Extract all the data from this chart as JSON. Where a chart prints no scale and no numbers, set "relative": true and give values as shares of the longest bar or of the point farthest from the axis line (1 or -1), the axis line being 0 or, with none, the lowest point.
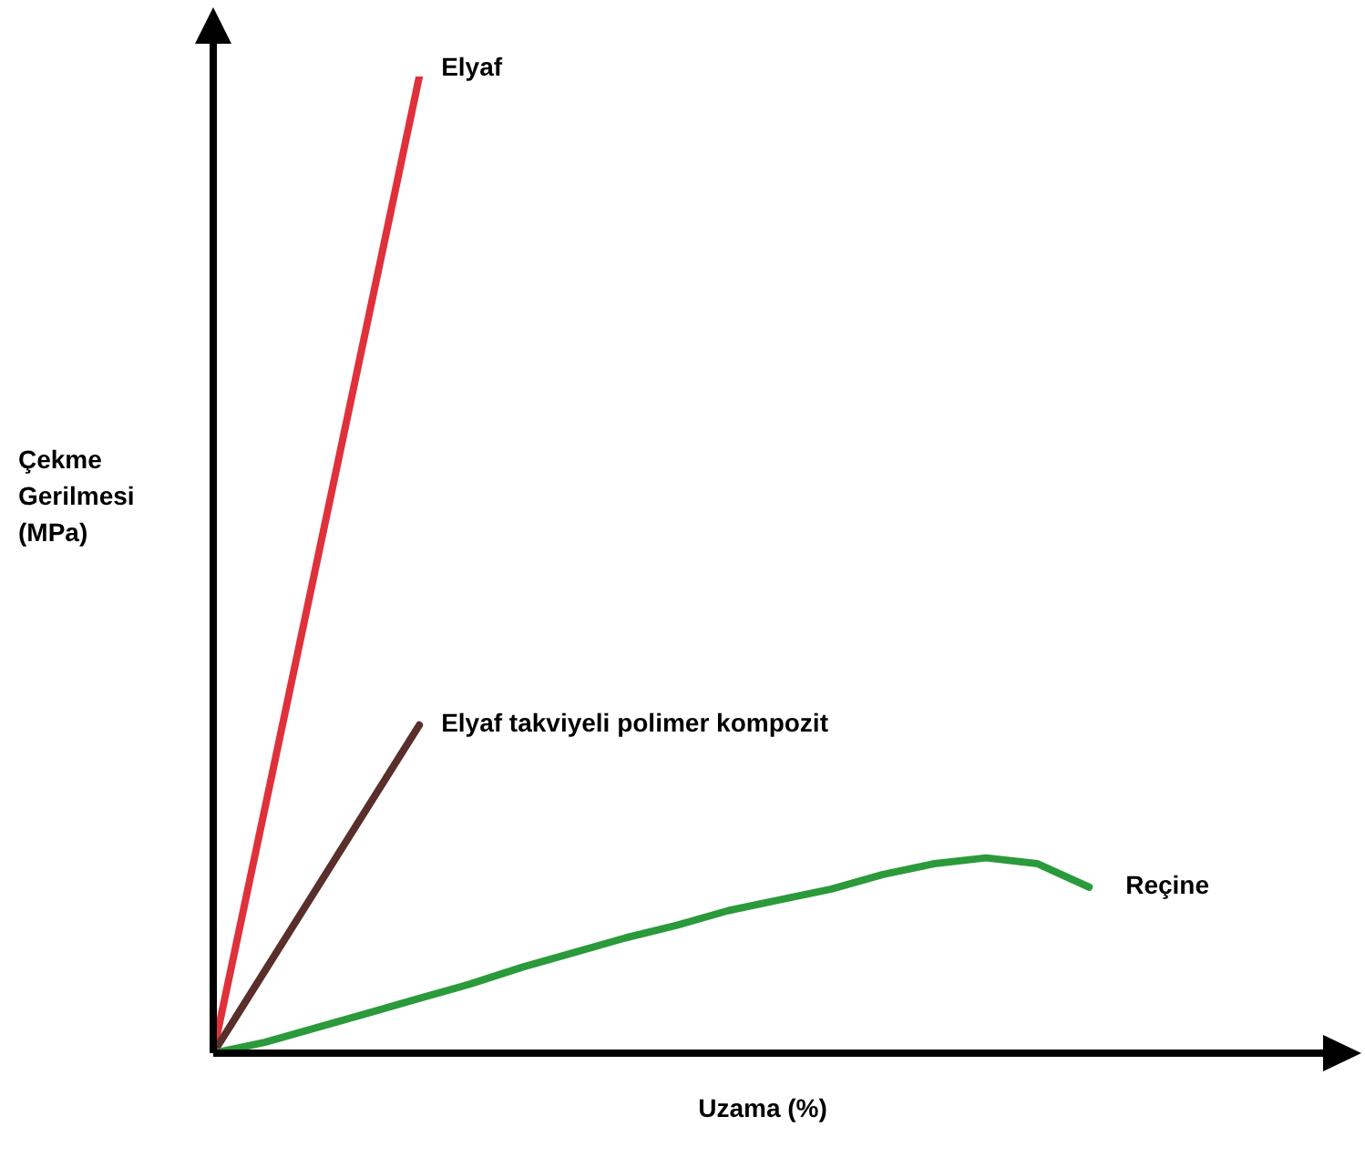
{
  "chart_data": {
    "type": "line",
    "relative": true,
    "xlabel": "Uzama (%)",
    "ylabel": "Çekme Gerilmesi (MPa)",
    "grid": false,
    "legend": false,
    "marker": "none",
    "line_style": "solid",
    "categories": [
      null,
      null,
      null,
      null,
      null,
      null,
      null,
      null,
      null,
      null,
      null,
      null,
      null,
      null,
      null,
      null,
      null,
      null,
      null,
      null,
      null,
      null
    ],
    "series": [
      {
        "name": "Elyaf",
        "color": "#e0303a",
        "values": [
          0,
          null,
          null,
          null,
          1,
          null,
          null,
          null,
          null,
          null,
          null,
          null,
          null,
          null,
          null,
          null,
          null,
          null,
          null,
          null,
          null,
          null
        ]
      },
      {
        "name": "Elyaf takviyeli polimer kompozit",
        "color": "#5a2e2a",
        "values": [
          0,
          null,
          null,
          null,
          0.336,
          null,
          null,
          null,
          null,
          null,
          null,
          null,
          null,
          null,
          null,
          null,
          null,
          null,
          null,
          null,
          null,
          null
        ]
      },
      {
        "name": "Reçine",
        "color": "#2a9a3a",
        "values": [
          0,
          0.011,
          0.026,
          0.041,
          0.056,
          0.071,
          0.088,
          0.103,
          0.118,
          0.131,
          0.146,
          0.157,
          0.168,
          0.183,
          0.194,
          0.2,
          0.194,
          0.17,
          null,
          null,
          null,
          null
        ]
      }
    ]
  }
}
